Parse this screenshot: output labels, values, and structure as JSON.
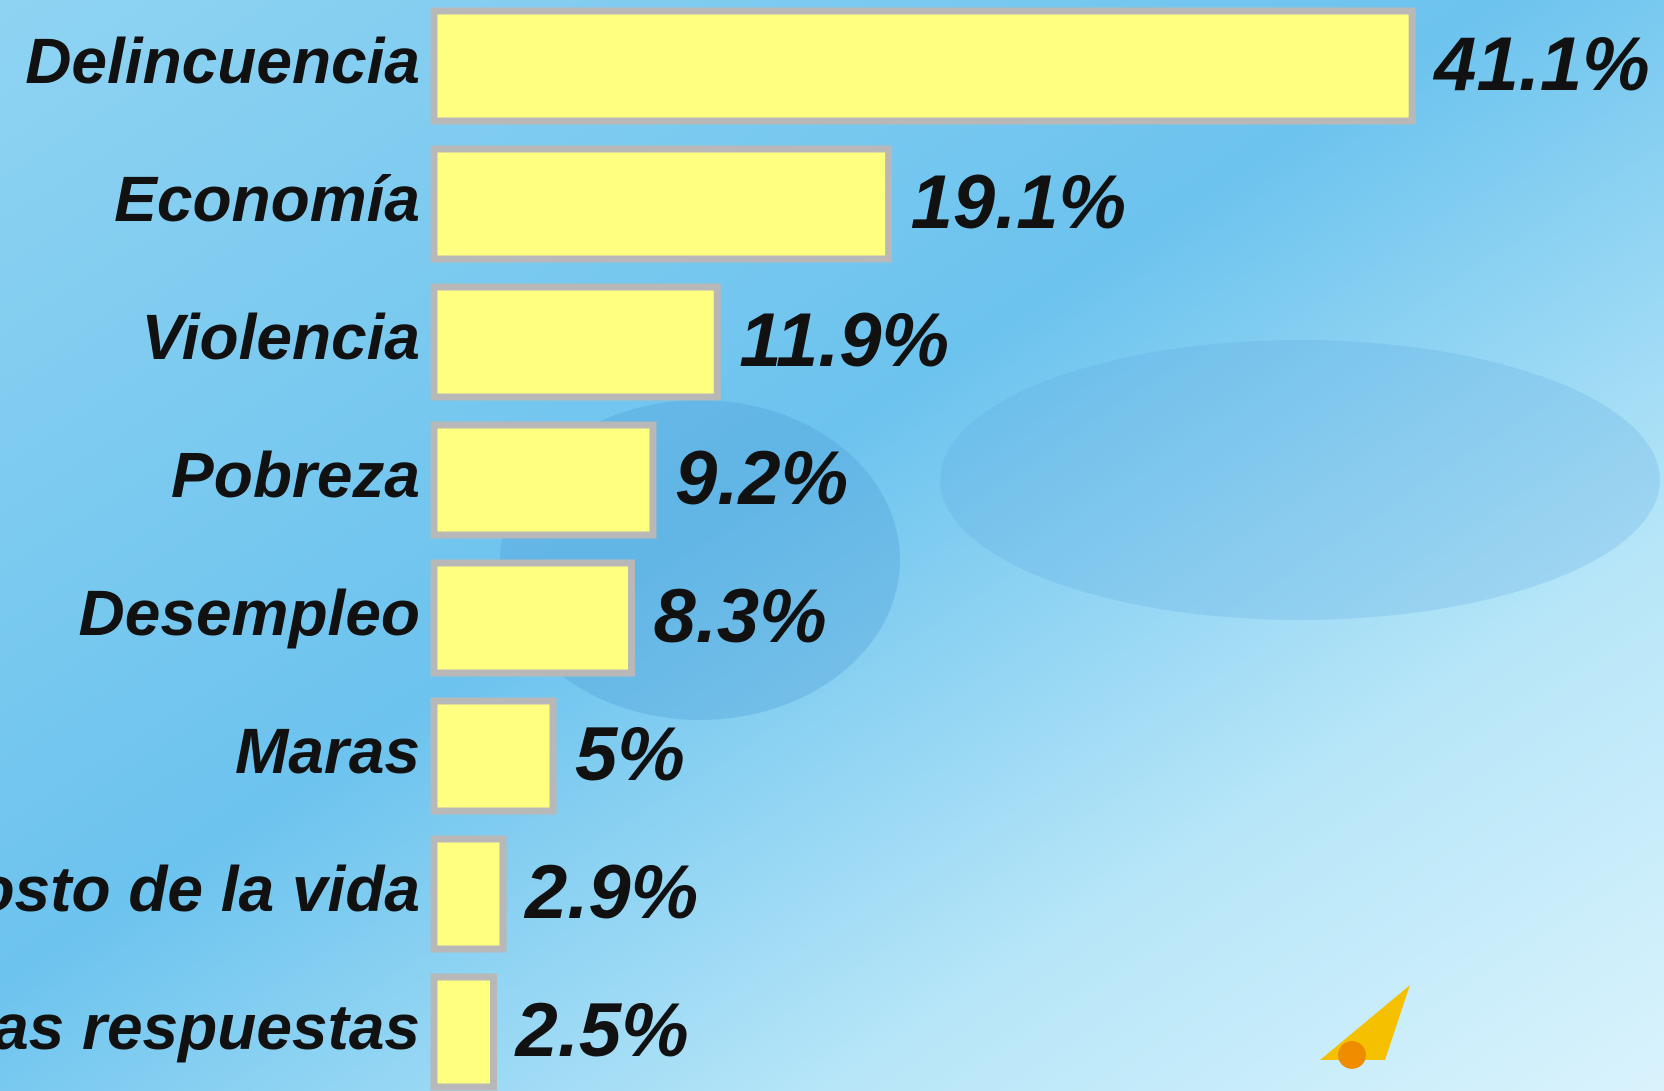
{
  "chart_data": {
    "type": "bar",
    "orientation": "horizontal",
    "categories": [
      "Delincuencia",
      "Economía",
      "Violencia",
      "Pobreza",
      "Desempleo",
      "Maras",
      "Costo de la vida",
      "Otras respuestas"
    ],
    "values": [
      41.1,
      19.1,
      11.9,
      9.2,
      8.3,
      5,
      2.9,
      2.5
    ],
    "value_labels": [
      "41.1%",
      "19.1%",
      "11.9%",
      "9.2%",
      "8.3%",
      "5%",
      "2.9%",
      "2.5%"
    ],
    "color": "#ffff80"
  }
}
